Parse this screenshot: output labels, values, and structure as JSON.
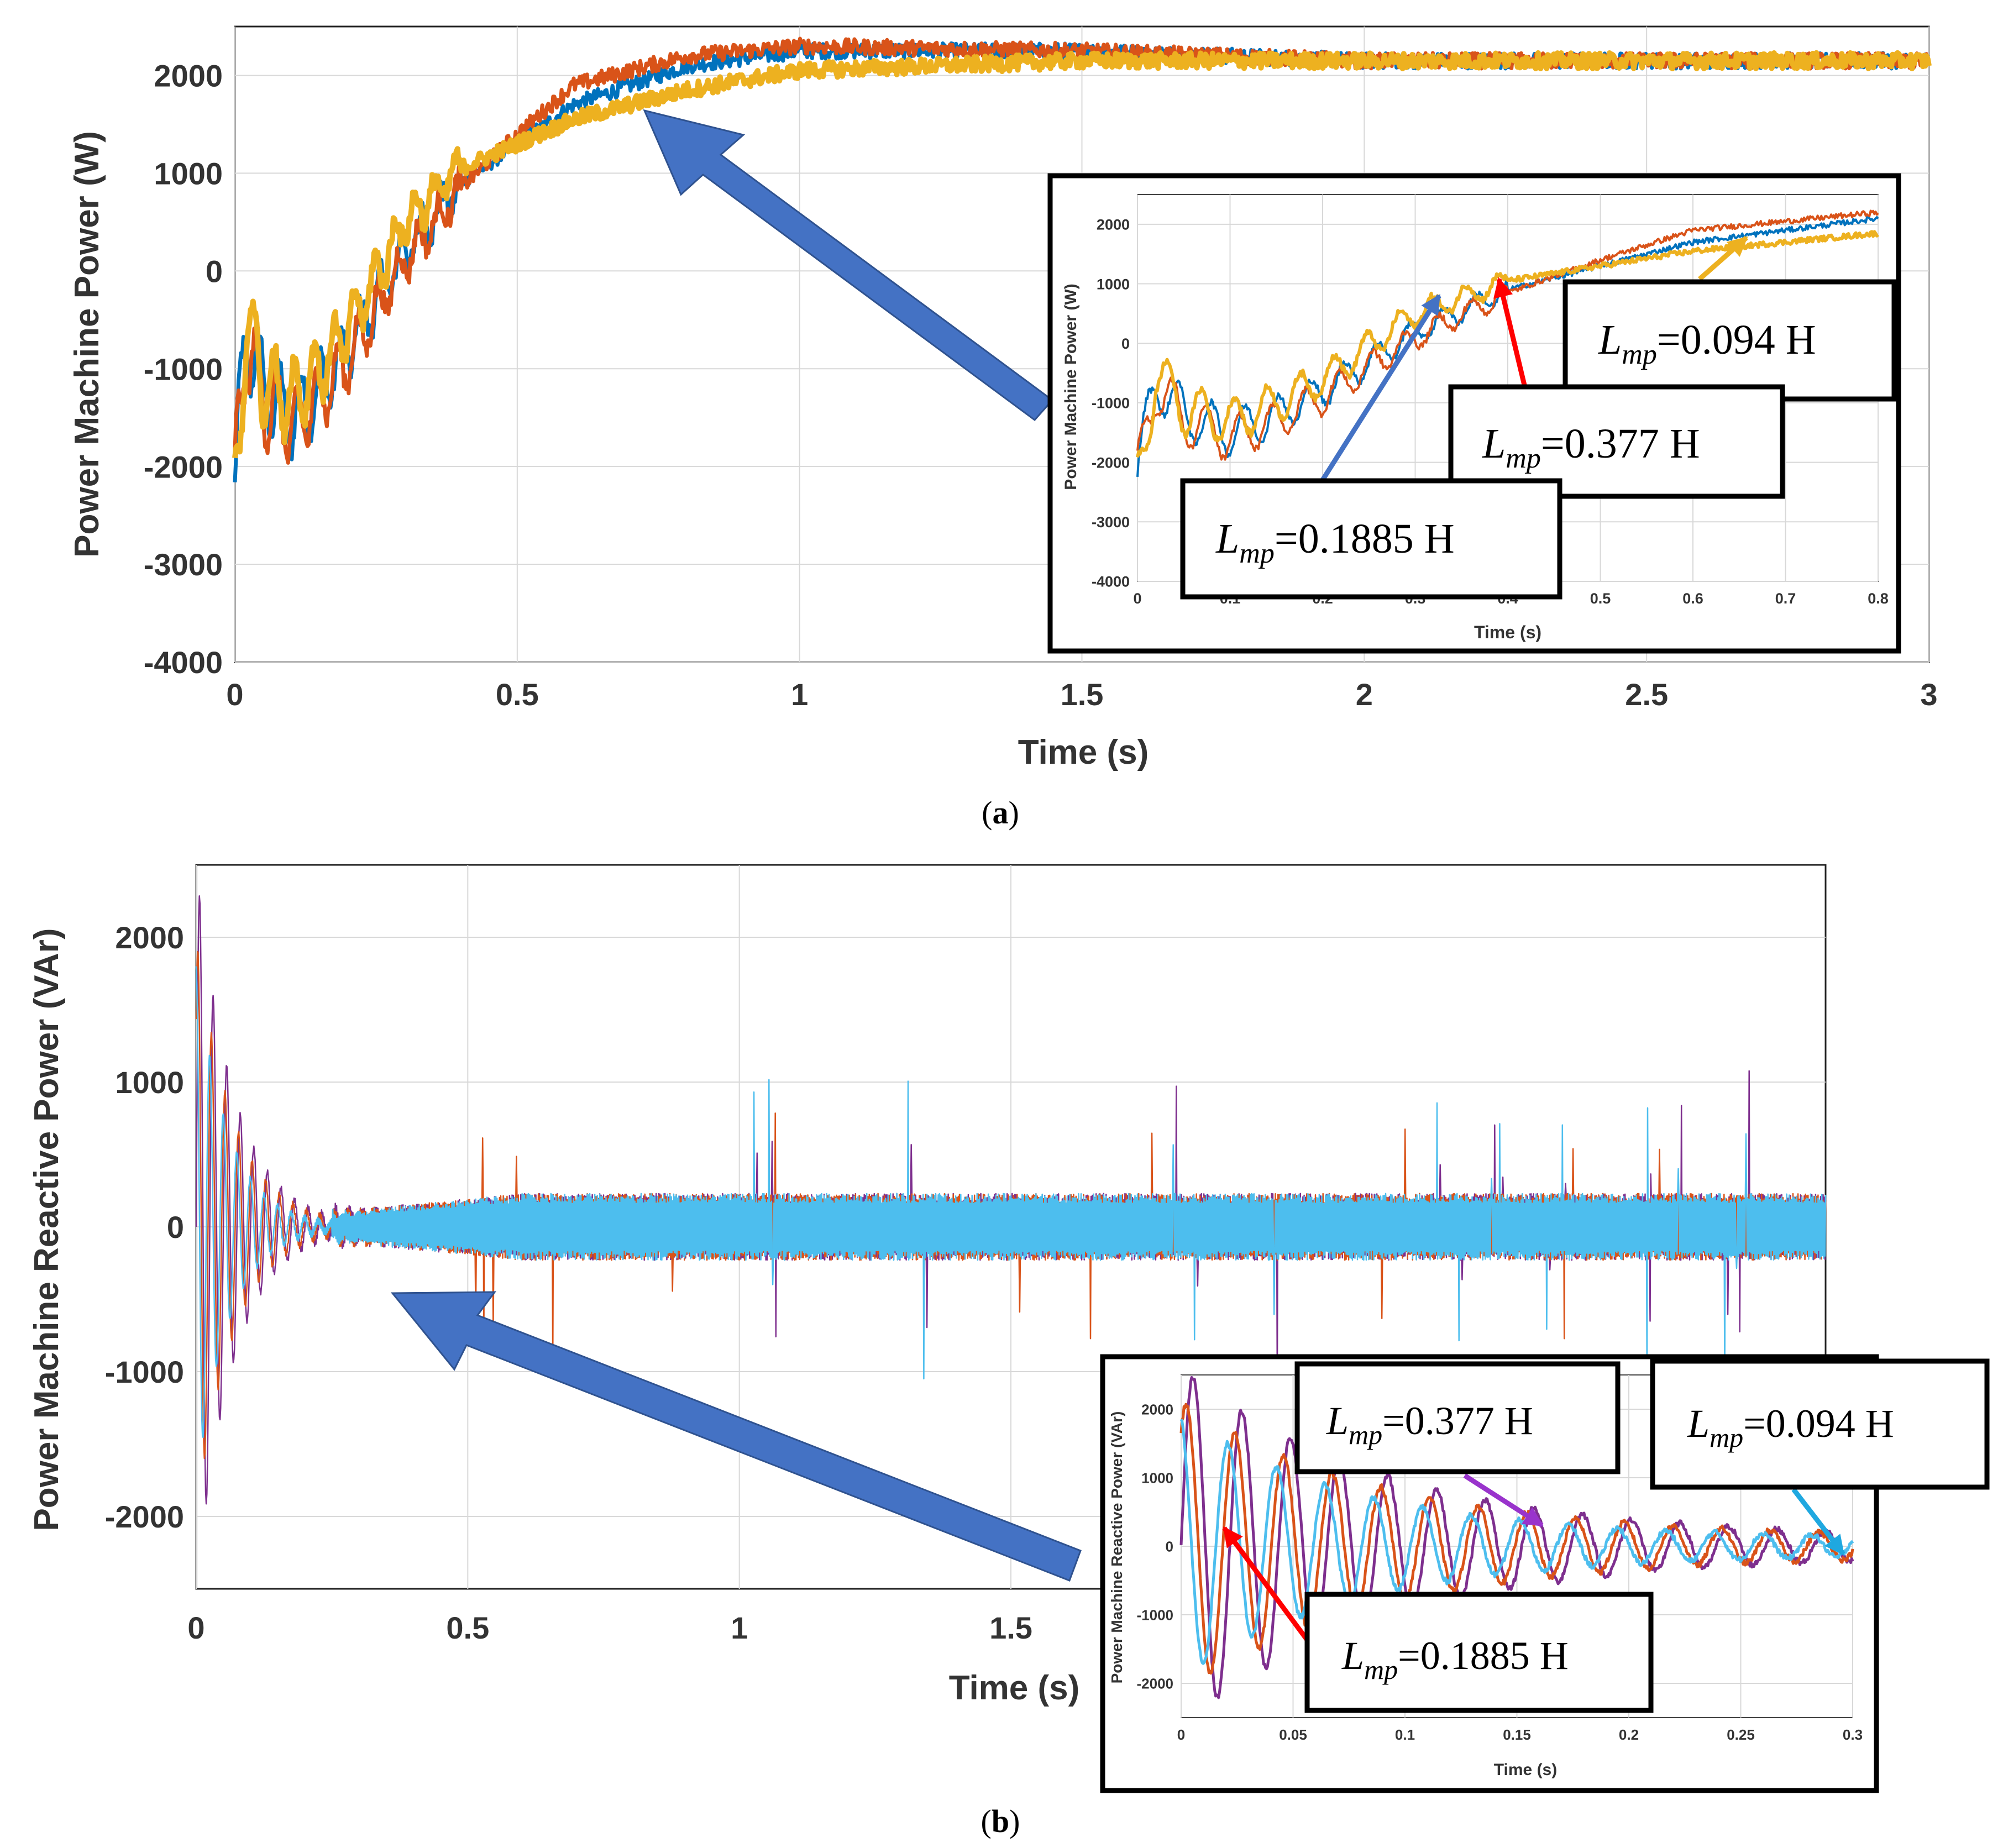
{
  "chart_data": [
    {
      "type": "line",
      "panel_label": "a",
      "xlabel": "Time (s)",
      "ylabel": "Power Machine Power (W)",
      "xlim": [
        0,
        3
      ],
      "ylim": [
        -4000,
        2500
      ],
      "xticks": [
        0,
        0.5,
        1,
        1.5,
        2,
        2.5,
        3
      ],
      "xtick_labels": [
        "0",
        "0.5",
        "1",
        "1.5",
        "2",
        "2.5",
        "3"
      ],
      "yticks": [
        -4000,
        -3000,
        -2000,
        -1000,
        0,
        1000,
        2000
      ],
      "ytick_labels": [
        "-4000",
        "-3000",
        "-2000",
        "-1000",
        "0",
        "1000",
        "2000"
      ],
      "grid": true,
      "series": [
        {
          "color": "#0072BD",
          "x": [
            0,
            0.02,
            0.05,
            0.1,
            0.15,
            0.2,
            0.3,
            0.4,
            0.5,
            0.6,
            0.8,
            1.0,
            1.5,
            2.0,
            2.5,
            3.0
          ],
          "y": [
            -2200,
            -600,
            -1200,
            -1500,
            -1200,
            -800,
            200,
            900,
            1300,
            1700,
            2100,
            2250,
            2250,
            2150,
            2150,
            2150
          ]
        },
        {
          "color": "#D95319",
          "x": [
            0,
            0.02,
            0.05,
            0.1,
            0.15,
            0.2,
            0.3,
            0.4,
            0.5,
            0.6,
            0.8,
            1.0,
            1.5,
            2.0,
            2.5,
            3.0
          ],
          "y": [
            -2200,
            -700,
            -1300,
            -1600,
            -1300,
            -900,
            100,
            850,
            1400,
            1900,
            2200,
            2300,
            2250,
            2150,
            2150,
            2150
          ]
        },
        {
          "color": "#EDB120",
          "x": [
            0,
            0.02,
            0.05,
            0.1,
            0.15,
            0.2,
            0.3,
            0.4,
            0.5,
            0.6,
            0.8,
            1.0,
            1.5,
            2.0,
            2.5,
            3.0
          ],
          "y": [
            -2400,
            -500,
            -1100,
            -1300,
            -1000,
            -600,
            500,
            1050,
            1300,
            1550,
            1850,
            2050,
            2150,
            2150,
            2150,
            2150
          ]
        }
      ],
      "inset": {
        "xlabel": "Time (s)",
        "ylabel": "Power Machine Power (W)",
        "xlim": [
          0,
          0.8
        ],
        "ylim": [
          -4000,
          2500
        ],
        "xticks": [
          0,
          0.1,
          0.2,
          0.3,
          0.4,
          0.5,
          0.6,
          0.7,
          0.8
        ],
        "xtick_labels": [
          "0",
          "0.1",
          "0.2",
          "0.3",
          "0.4",
          "0.5",
          "0.6",
          "0.7",
          "0.8"
        ],
        "yticks": [
          -4000,
          -3000,
          -2000,
          -1000,
          0,
          1000,
          2000
        ],
        "ytick_labels": [
          "-4000",
          "-3000",
          "-2000",
          "-1000",
          "0",
          "1000",
          "2000"
        ]
      },
      "annotations": [
        {
          "label_main": "L",
          "label_sub": "mp",
          "label_rest": "=0.094 H",
          "arrow_color": "#EDB120"
        },
        {
          "label_main": "L",
          "label_sub": "mp",
          "label_rest": "=0.377 H",
          "arrow_color": "#FF0000"
        },
        {
          "label_main": "L",
          "label_sub": "mp",
          "label_rest": "=0.1885 H",
          "arrow_color": "#4472C4"
        }
      ]
    },
    {
      "type": "line",
      "panel_label": "b",
      "xlabel": "Time (s)",
      "ylabel": "Power Machine Reactive Power (VAr)",
      "xlim": [
        0,
        3
      ],
      "ylim": [
        -2500,
        2500
      ],
      "xticks": [
        0,
        0.5,
        1,
        1.5
      ],
      "xtick_labels": [
        "0",
        "0.5",
        "1",
        "1.5"
      ],
      "yticks": [
        -2000,
        -1000,
        0,
        1000,
        2000
      ],
      "ytick_labels": [
        "-2000",
        "-1000",
        "0",
        "1000",
        "2000"
      ],
      "grid": true,
      "series": [
        {
          "color": "#7E2F8E",
          "band": 230,
          "decay_amp": 2500,
          "decay_tau": 0.07
        },
        {
          "color": "#D95319",
          "band": 230,
          "decay_amp": 2000,
          "decay_tau": 0.07
        },
        {
          "color": "#4DBEEE",
          "band": 230,
          "decay_amp": 1800,
          "decay_tau": 0.06
        }
      ],
      "inset": {
        "xlabel": "Time (s)",
        "ylabel": "Power Machine Reactive Power (VAr)",
        "xlim": [
          0,
          0.3
        ],
        "ylim": [
          -2500,
          2500
        ],
        "xticks": [
          0,
          0.05,
          0.1,
          0.15,
          0.2,
          0.25,
          0.3
        ],
        "xtick_labels": [
          "0",
          "0.05",
          "0.1",
          "0.15",
          "0.2",
          "0.25",
          "0.3"
        ],
        "yticks": [
          -2000,
          -1000,
          0,
          1000,
          2000
        ],
        "ytick_labels": [
          "-2000",
          "-1000",
          "0",
          "1000",
          "2000"
        ]
      },
      "annotations": [
        {
          "label_main": "L",
          "label_sub": "mp",
          "label_rest": "=0.377 H",
          "arrow_color": "#9933CC"
        },
        {
          "label_main": "L",
          "label_sub": "mp",
          "label_rest": "=0.094 H",
          "arrow_color": "#1FA8E0"
        },
        {
          "label_main": "L",
          "label_sub": "mp",
          "label_rest": "=0.1885 H",
          "arrow_color": "#FF0000"
        }
      ]
    }
  ]
}
